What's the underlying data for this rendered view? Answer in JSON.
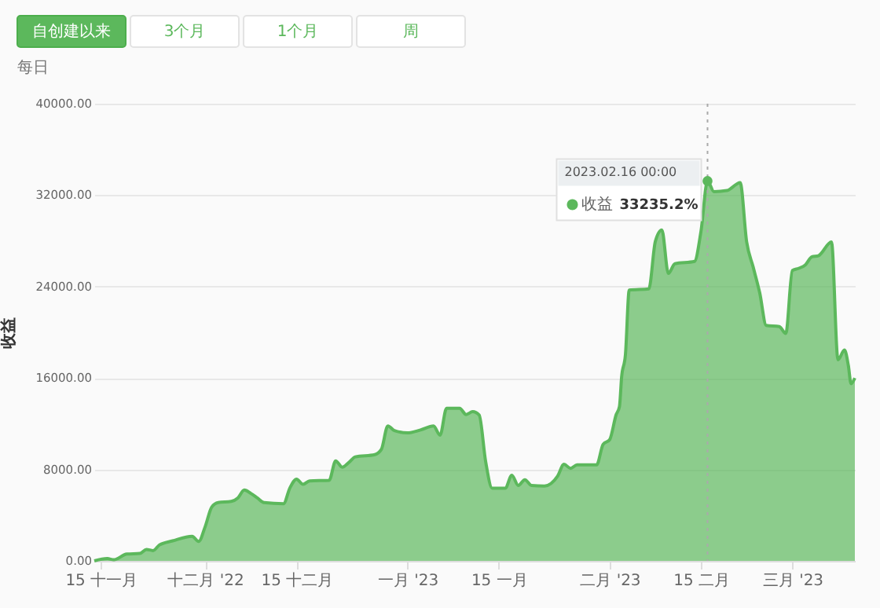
{
  "chart_data": {
    "type": "area",
    "subtitle": "每日",
    "ylabel": "收益",
    "annotations": [
      "自创建以来",
      "3个月",
      "1个月",
      "周",
      {
        "text": "2023.02.16 00:00",
        "x": "2023-02-16",
        "y": 33235.2
      },
      {
        "text": "33235.2%",
        "x": "2023-02-16",
        "y": 33235.2
      }
    ],
    "x": [
      "2022-11-14",
      "2022-11-16",
      "2022-11-17",
      "2022-11-19",
      "2022-11-21",
      "2022-11-22",
      "2022-11-23",
      "2022-11-24",
      "2022-11-26",
      "2022-11-29",
      "2022-11-30",
      "2022-12-01",
      "2022-12-02",
      "2022-12-03",
      "2022-12-05",
      "2022-12-06",
      "2022-12-07",
      "2022-12-08",
      "2022-12-09",
      "2022-12-10",
      "2022-12-13",
      "2022-12-14",
      "2022-12-15",
      "2022-12-16",
      "2022-12-17",
      "2022-12-20",
      "2022-12-21",
      "2022-12-22",
      "2022-12-23",
      "2022-12-24",
      "2022-12-27",
      "2022-12-28",
      "2022-12-29",
      "2022-12-30",
      "2023-01-01",
      "2023-01-03",
      "2023-01-05",
      "2023-01-06",
      "2023-01-07",
      "2023-01-09",
      "2023-01-10",
      "2023-01-11",
      "2023-01-12",
      "2023-01-13",
      "2023-01-14",
      "2023-01-16",
      "2023-01-17",
      "2023-01-18",
      "2023-01-19",
      "2023-01-20",
      "2023-01-22",
      "2023-01-24",
      "2023-01-25",
      "2023-01-26",
      "2023-01-27",
      "2023-01-30",
      "2023-01-31",
      "2023-02-01",
      "2023-02-02",
      "2023-02-02T12:00",
      "2023-02-02T20:00",
      "2023-02-03T10:00",
      "2023-02-04",
      "2023-02-07",
      "2023-02-08",
      "2023-02-09",
      "2023-02-10",
      "2023-02-11",
      "2023-02-14",
      "2023-02-15",
      "2023-02-16",
      "2023-02-17",
      "2023-02-19",
      "2023-02-21",
      "2023-02-22",
      "2023-02-23",
      "2023-02-24",
      "2023-02-25",
      "2023-02-27",
      "2023-02-28",
      "2023-03-01",
      "2023-03-02",
      "2023-03-03",
      "2023-03-04",
      "2023-03-05",
      "2023-03-07",
      "2023-03-08",
      "2023-03-09",
      "2023-03-09T14:00",
      "2023-03-10",
      "2023-03-10T14:00"
    ],
    "series": [
      {
        "name": "收益",
        "color": "#5cb85c",
        "values": [
          0,
          200,
          100,
          600,
          650,
          1000,
          900,
          1400,
          1750,
          2150,
          1700,
          3000,
          4700,
          5100,
          5200,
          5500,
          6200,
          5900,
          5500,
          5100,
          5000,
          6400,
          7150,
          6700,
          7000,
          7050,
          8750,
          8200,
          8600,
          9100,
          9300,
          9750,
          11800,
          11400,
          11200,
          11450,
          11800,
          11000,
          13350,
          13350,
          12800,
          13050,
          12750,
          8650,
          6350,
          6350,
          7500,
          6600,
          7100,
          6600,
          6550,
          7400,
          8450,
          8100,
          8400,
          8400,
          10200,
          10600,
          12800,
          13500,
          16100,
          18050,
          23700,
          23800,
          27950,
          28950,
          25150,
          26000,
          26200,
          28850,
          33235.2,
          32300,
          32400,
          33100,
          27900,
          25700,
          23450,
          20600,
          20500,
          19900,
          25400,
          25600,
          25900,
          26600,
          26700,
          27900,
          17600,
          18450,
          17100,
          15500,
          16000
        ]
      }
    ],
    "xlim": [
      "2022-11-14",
      "2023-03-10T14:00"
    ],
    "xticks": [
      {
        "value": "2022-11-15",
        "label": "15 十一月"
      },
      {
        "value": "2022-12-01",
        "label": "十二月 '22"
      },
      {
        "value": "2022-12-15",
        "label": "15 十二月"
      },
      {
        "value": "2023-01-01",
        "label": "一月 '23"
      },
      {
        "value": "2023-01-15",
        "label": "15 一月"
      },
      {
        "value": "2023-02-01",
        "label": "二月 '23"
      },
      {
        "value": "2023-02-15",
        "label": "15 二月"
      },
      {
        "value": "2023-03-01",
        "label": "三月 '23"
      }
    ],
    "ylim": [
      0,
      40000
    ],
    "yticks": [
      {
        "value": 0,
        "label": "0.00"
      },
      {
        "value": 8000,
        "label": "8000.00"
      },
      {
        "value": 16000,
        "label": "16000.00"
      },
      {
        "value": 24000,
        "label": "24000.00"
      },
      {
        "value": 32000,
        "label": "32000.00"
      },
      {
        "value": 40000,
        "label": "40000.00"
      }
    ],
    "ref_lines": [
      {
        "axis": "x",
        "value": "2023-02-16",
        "color": "#aaaaaa",
        "line_style": "dotted"
      }
    ],
    "grid": "y"
  }
}
